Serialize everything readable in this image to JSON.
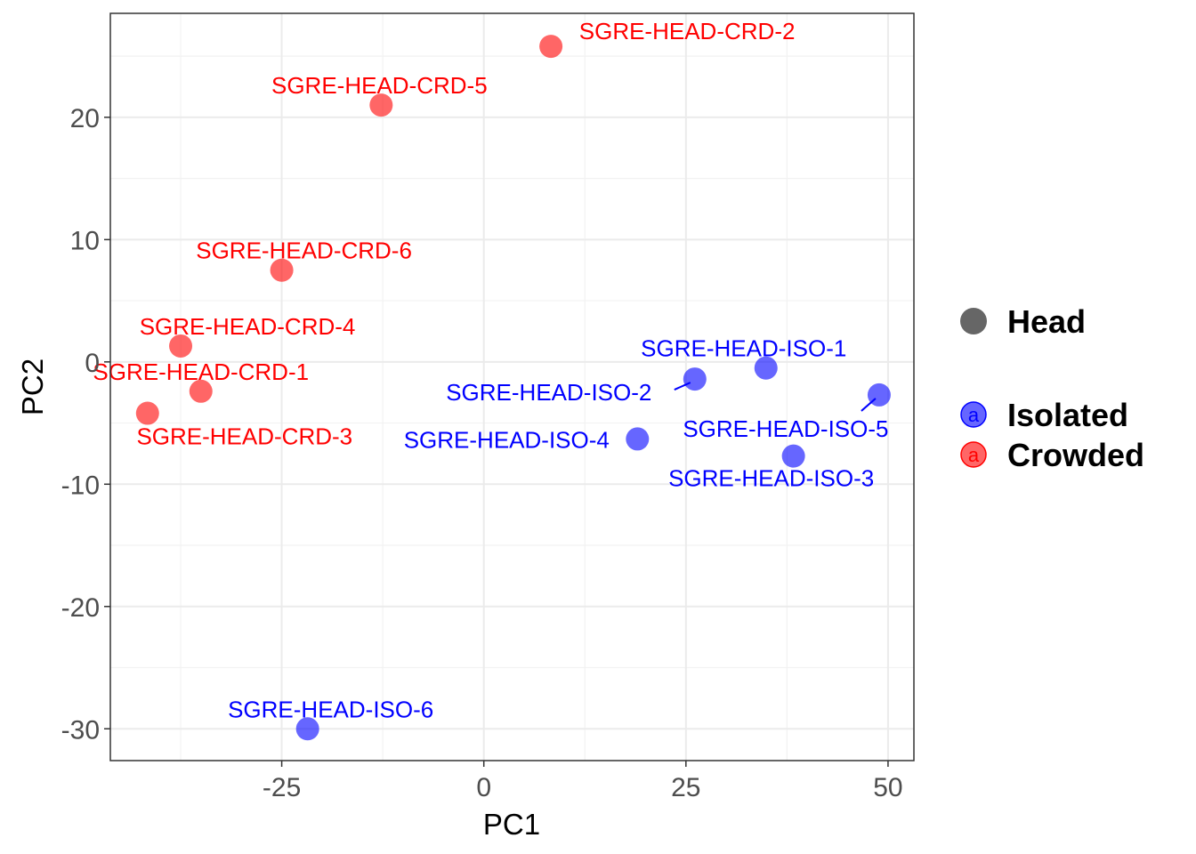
{
  "chart_data": {
    "type": "scatter",
    "xlabel": "PC1",
    "ylabel": "PC2",
    "xlim": [
      -46.2,
      53.2
    ],
    "ylim": [
      -32.6,
      28.5
    ],
    "x_ticks": [
      -25,
      0,
      25,
      50
    ],
    "x_tick_labels": [
      "-25",
      "0",
      "25",
      "50"
    ],
    "y_ticks": [
      -30,
      -20,
      -10,
      0,
      10,
      20
    ],
    "y_tick_labels": [
      "-30",
      "-20",
      "-10",
      "0",
      "10",
      "20"
    ],
    "grid": true,
    "legend_position": "right",
    "colors": {
      "Isolated": "#0000FF",
      "Crowded": "#FF0000"
    },
    "legend": {
      "shape_entry": "Head",
      "color_entries": [
        {
          "name": "Isolated",
          "color": "#0000FF",
          "key_letter": "a"
        },
        {
          "name": "Crowded",
          "color": "#FF0000",
          "key_letter": "a"
        }
      ]
    },
    "series": [
      {
        "name": "Crowded",
        "color": "#FF0000",
        "points": [
          {
            "label": "SGRE-HEAD-CRD-1",
            "x": -35.0,
            "y": -2.4
          },
          {
            "label": "SGRE-HEAD-CRD-2",
            "x": 8.3,
            "y": 25.8
          },
          {
            "label": "SGRE-HEAD-CRD-3",
            "x": -41.6,
            "y": -4.2
          },
          {
            "label": "SGRE-HEAD-CRD-4",
            "x": -37.5,
            "y": 1.3
          },
          {
            "label": "SGRE-HEAD-CRD-5",
            "x": -12.7,
            "y": 21.0
          },
          {
            "label": "SGRE-HEAD-CRD-6",
            "x": -25.0,
            "y": 7.5
          }
        ]
      },
      {
        "name": "Isolated",
        "color": "#0000FF",
        "points": [
          {
            "label": "SGRE-HEAD-ISO-1",
            "x": 34.9,
            "y": -0.5
          },
          {
            "label": "SGRE-HEAD-ISO-2",
            "x": 26.1,
            "y": -1.4
          },
          {
            "label": "SGRE-HEAD-ISO-3",
            "x": 38.3,
            "y": -7.7
          },
          {
            "label": "SGRE-HEAD-ISO-4",
            "x": 19.0,
            "y": -6.3
          },
          {
            "label": "SGRE-HEAD-ISO-5",
            "x": 48.9,
            "y": -2.7
          },
          {
            "label": "SGRE-HEAD-ISO-6",
            "x": -21.8,
            "y": -30.0
          }
        ]
      }
    ]
  }
}
